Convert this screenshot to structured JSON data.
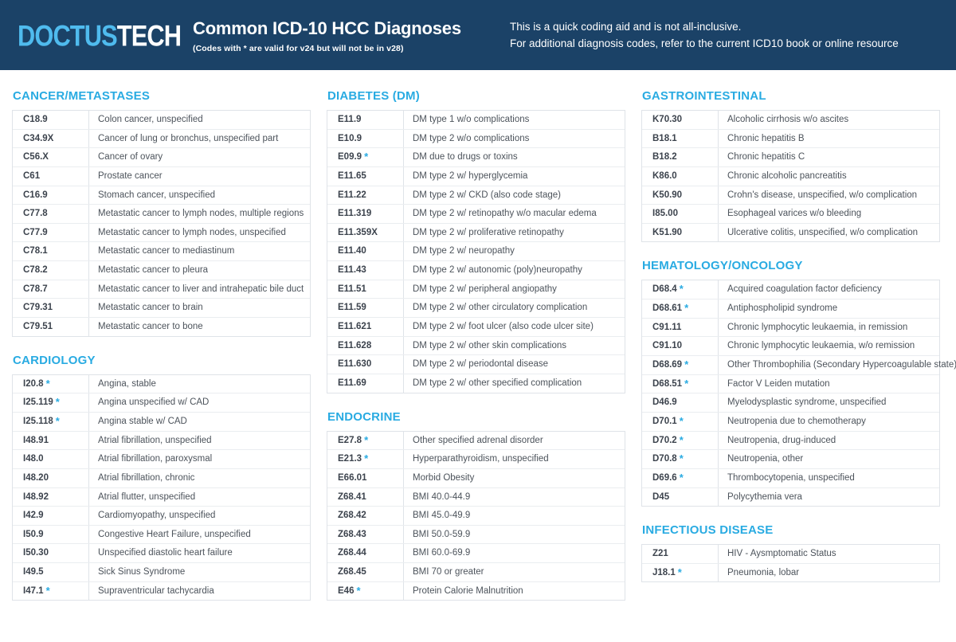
{
  "header": {
    "logo_part1": "DOCTUS",
    "logo_part2": "TECH",
    "title": "Common ICD-10 HCC Diagnoses",
    "subtitle": "(Codes with * are valid for v24 but will not be in v28)",
    "note_line1": "This is a quick coding aid and is not all-inclusive.",
    "note_line2": "For additional diagnosis codes, refer to the current ICD10 book or online resource"
  },
  "colors": {
    "header_bg": "#1B4267",
    "accent_cyan": "#29ABE2",
    "logo_blue": "#4FBBEE",
    "table_border": "#DFE3E8",
    "code_text": "#3C434D",
    "desc_text": "#4C535B"
  },
  "sections": {
    "cancer": {
      "title": "CANCER/METASTASES",
      "rows": [
        {
          "code": "C18.9",
          "star": false,
          "desc": "Colon cancer, unspecified"
        },
        {
          "code": "C34.9X",
          "star": false,
          "desc": "Cancer of lung or bronchus, unspecified part"
        },
        {
          "code": "C56.X",
          "star": false,
          "desc": "Cancer of ovary"
        },
        {
          "code": "C61",
          "star": false,
          "desc": "Prostate cancer"
        },
        {
          "code": "C16.9",
          "star": false,
          "desc": "Stomach cancer, unspecified"
        },
        {
          "code": "C77.8",
          "star": false,
          "desc": "Metastatic cancer to lymph nodes, multiple regions"
        },
        {
          "code": "C77.9",
          "star": false,
          "desc": "Metastatic cancer to lymph nodes, unspecified"
        },
        {
          "code": "C78.1",
          "star": false,
          "desc": "Metastatic cancer to mediastinum"
        },
        {
          "code": "C78.2",
          "star": false,
          "desc": "Metastatic cancer to pleura"
        },
        {
          "code": "C78.7",
          "star": false,
          "desc": "Metastatic cancer to liver and intrahepatic bile duct"
        },
        {
          "code": "C79.31",
          "star": false,
          "desc": "Metastatic cancer to brain"
        },
        {
          "code": "C79.51",
          "star": false,
          "desc": "Metastatic cancer to bone"
        }
      ]
    },
    "cardiology": {
      "title": "CARDIOLOGY",
      "rows": [
        {
          "code": "I20.8",
          "star": true,
          "desc": "Angina, stable"
        },
        {
          "code": "I25.119",
          "star": true,
          "desc": "Angina unspecified w/ CAD"
        },
        {
          "code": "I25.118",
          "star": true,
          "desc": "Angina stable w/ CAD"
        },
        {
          "code": "I48.91",
          "star": false,
          "desc": "Atrial fibrillation, unspecified"
        },
        {
          "code": "I48.0",
          "star": false,
          "desc": "Atrial fibrillation, paroxysmal"
        },
        {
          "code": "I48.20",
          "star": false,
          "desc": "Atrial fibrillation, chronic"
        },
        {
          "code": "I48.92",
          "star": false,
          "desc": "Atrial flutter, unspecified"
        },
        {
          "code": "I42.9",
          "star": false,
          "desc": "Cardiomyopathy, unspecified"
        },
        {
          "code": "I50.9",
          "star": false,
          "desc": "Congestive Heart Failure, unspecified"
        },
        {
          "code": "I50.30",
          "star": false,
          "desc": "Unspecified diastolic heart failure"
        },
        {
          "code": "I49.5",
          "star": false,
          "desc": "Sick Sinus Syndrome"
        },
        {
          "code": "I47.1",
          "star": true,
          "desc": "Supraventricular tachycardia"
        }
      ]
    },
    "diabetes": {
      "title": "DIABETES (DM)",
      "rows": [
        {
          "code": "E11.9",
          "star": false,
          "desc": "DM type 1 w/o complications"
        },
        {
          "code": "E10.9",
          "star": false,
          "desc": "DM type 2 w/o complications"
        },
        {
          "code": "E09.9",
          "star": true,
          "desc": "DM due to drugs or toxins"
        },
        {
          "code": "E11.65",
          "star": false,
          "desc": "DM type 2 w/ hyperglycemia"
        },
        {
          "code": "E11.22",
          "star": false,
          "desc": "DM type 2 w/ CKD (also code stage)"
        },
        {
          "code": "E11.319",
          "star": false,
          "desc": "DM type 2 w/ retinopathy w/o macular edema"
        },
        {
          "code": "E11.359X",
          "star": false,
          "desc": "DM type 2 w/ proliferative retinopathy"
        },
        {
          "code": "E11.40",
          "star": false,
          "desc": "DM type 2 w/ neuropathy"
        },
        {
          "code": "E11.43",
          "star": false,
          "desc": "DM type 2 w/ autonomic (poly)neuropathy"
        },
        {
          "code": "E11.51",
          "star": false,
          "desc": "DM type 2 w/ peripheral angiopathy"
        },
        {
          "code": "E11.59",
          "star": false,
          "desc": "DM type 2 w/ other circulatory complication"
        },
        {
          "code": "E11.621",
          "star": false,
          "desc": "DM type 2 w/ foot ulcer (also code ulcer site)"
        },
        {
          "code": "E11.628",
          "star": false,
          "desc": "DM type 2 w/ other skin complications"
        },
        {
          "code": "E11.630",
          "star": false,
          "desc": "DM type 2 w/ periodontal disease"
        },
        {
          "code": "E11.69",
          "star": false,
          "desc": "DM type 2 w/ other specified complication"
        }
      ]
    },
    "endocrine": {
      "title": "ENDOCRINE",
      "rows": [
        {
          "code": "E27.8",
          "star": true,
          "desc": "Other specified adrenal disorder"
        },
        {
          "code": "E21.3",
          "star": true,
          "desc": "Hyperparathyroidism, unspecified"
        },
        {
          "code": "E66.01",
          "star": false,
          "desc": "Morbid Obesity"
        },
        {
          "code": "Z68.41",
          "star": false,
          "desc": "BMI 40.0-44.9"
        },
        {
          "code": "Z68.42",
          "star": false,
          "desc": "BMI 45.0-49.9"
        },
        {
          "code": "Z68.43",
          "star": false,
          "desc": "BMI 50.0-59.9"
        },
        {
          "code": "Z68.44",
          "star": false,
          "desc": "BMI 60.0-69.9"
        },
        {
          "code": "Z68.45",
          "star": false,
          "desc": "BMI 70 or greater"
        },
        {
          "code": "E46",
          "star": true,
          "desc": "Protein Calorie Malnutrition"
        }
      ]
    },
    "gastro": {
      "title": "GASTROINTESTINAL",
      "rows": [
        {
          "code": "K70.30",
          "star": false,
          "desc": "Alcoholic cirrhosis w/o ascites"
        },
        {
          "code": "B18.1",
          "star": false,
          "desc": "Chronic hepatitis B"
        },
        {
          "code": "B18.2",
          "star": false,
          "desc": "Chronic hepatitis C"
        },
        {
          "code": "K86.0",
          "star": false,
          "desc": "Chronic alcoholic pancreatitis"
        },
        {
          "code": "K50.90",
          "star": false,
          "desc": "Crohn's disease, unspecified, w/o complication"
        },
        {
          "code": "I85.00",
          "star": false,
          "desc": "Esophageal varices w/o bleeding"
        },
        {
          "code": "K51.90",
          "star": false,
          "desc": "Ulcerative colitis, unspecified, w/o complication"
        }
      ]
    },
    "heme": {
      "title": "HEMATOLOGY/ONCOLOGY",
      "rows": [
        {
          "code": "D68.4",
          "star": true,
          "desc": "Acquired coagulation factor deficiency"
        },
        {
          "code": "D68.61",
          "star": true,
          "desc": "Antiphospholipid syndrome"
        },
        {
          "code": "C91.11",
          "star": false,
          "desc": "Chronic lymphocytic leukaemia, in remission"
        },
        {
          "code": "C91.10",
          "star": false,
          "desc": "Chronic lymphocytic leukaemia, w/o remission"
        },
        {
          "code": "D68.69",
          "star": true,
          "desc": "Other Thrombophilia (Secondary Hypercoagulable state)"
        },
        {
          "code": "D68.51",
          "star": true,
          "desc": "Factor V Leiden mutation"
        },
        {
          "code": "D46.9",
          "star": false,
          "desc": "Myelodysplastic syndrome, unspecified"
        },
        {
          "code": "D70.1",
          "star": true,
          "desc": "Neutropenia due to chemotherapy"
        },
        {
          "code": "D70.2",
          "star": true,
          "desc": "Neutropenia, drug-induced"
        },
        {
          "code": "D70.8",
          "star": true,
          "desc": "Neutropenia, other"
        },
        {
          "code": "D69.6",
          "star": true,
          "desc": "Thrombocytopenia, unspecified"
        },
        {
          "code": "D45",
          "star": false,
          "desc": "Polycythemia vera"
        }
      ]
    },
    "infectious": {
      "title": "INFECTIOUS DISEASE",
      "rows": [
        {
          "code": "Z21",
          "star": false,
          "desc": "HIV - Aysmptomatic Status"
        },
        {
          "code": "J18.1",
          "star": true,
          "desc": "Pneumonia, lobar"
        }
      ]
    }
  }
}
